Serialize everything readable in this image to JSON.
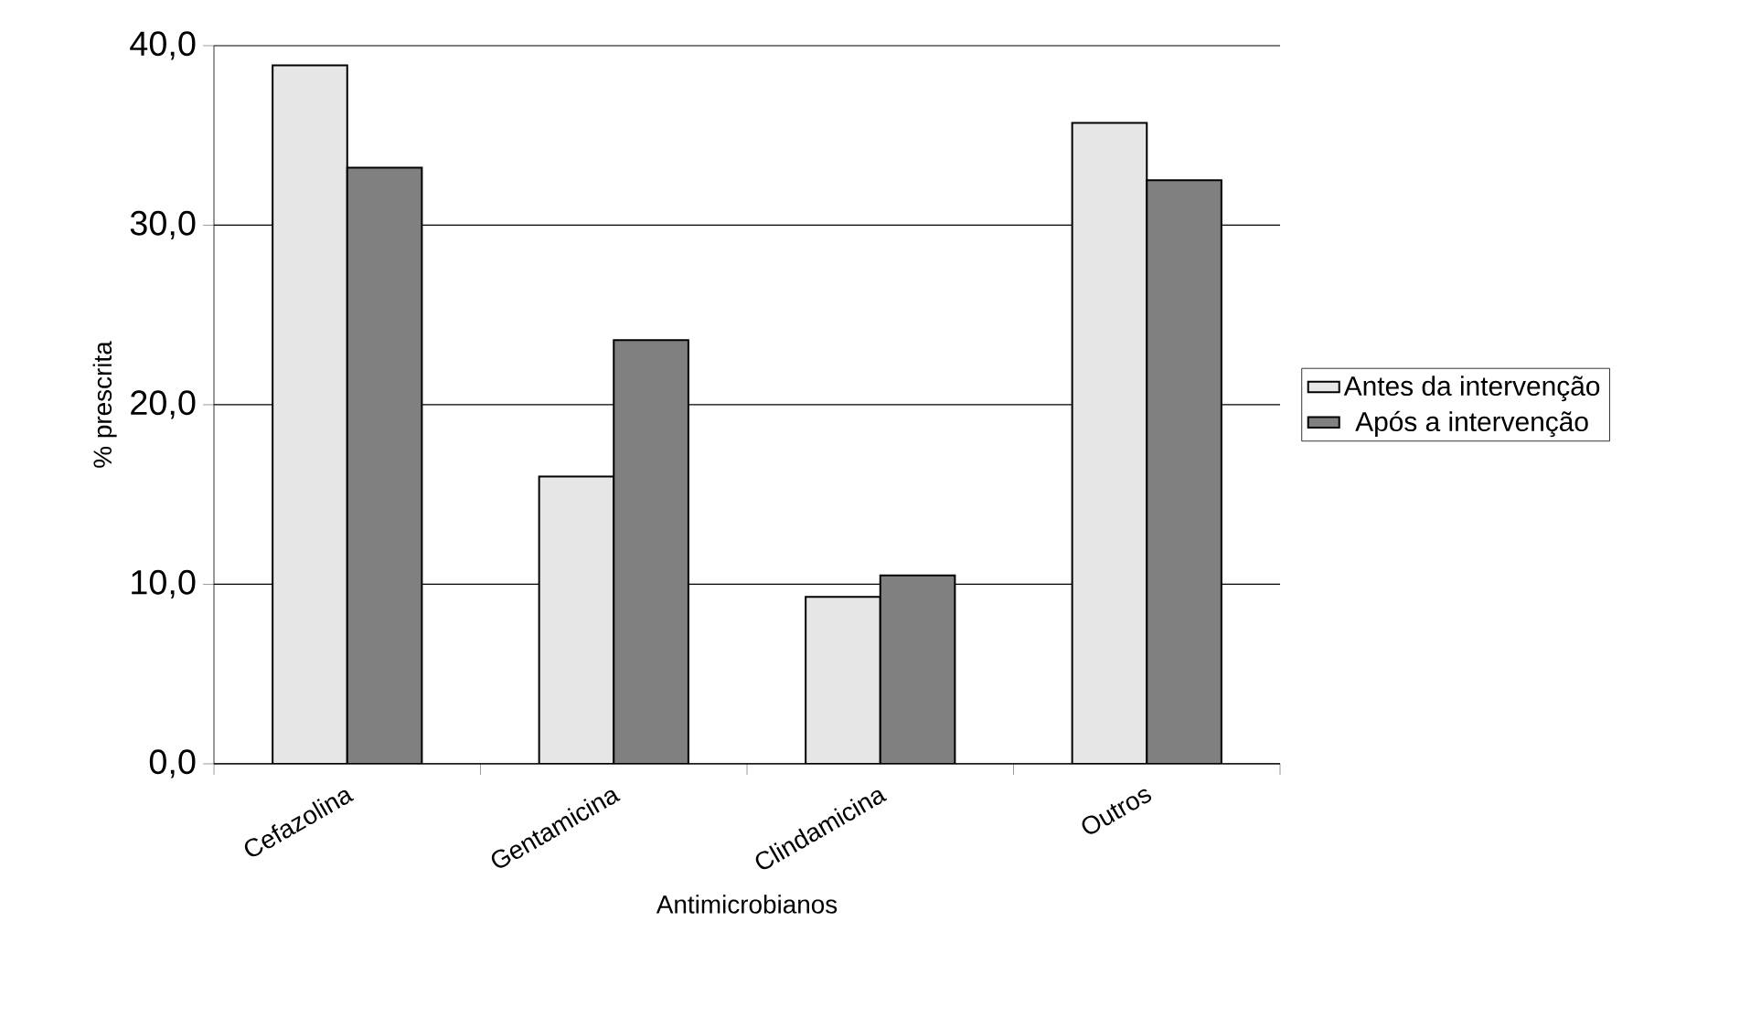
{
  "chart_data": {
    "type": "bar",
    "xlabel": "Antimicrobianos",
    "ylabel": "% prescrita",
    "categories": [
      "Cefazolina",
      "Gentamicina",
      "Clindamicina",
      "Outros"
    ],
    "series": [
      {
        "name": "Antes da intervenção",
        "color": "#e6e6e6",
        "values": [
          38.9,
          16.0,
          9.3,
          35.7
        ]
      },
      {
        "name": "Após a intervenção",
        "color": "#808080",
        "values": [
          33.2,
          23.6,
          10.5,
          32.5
        ]
      }
    ],
    "ylim": [
      0,
      40
    ],
    "yticks": [
      {
        "value": 0,
        "label": "0,0"
      },
      {
        "value": 10,
        "label": "10,0"
      },
      {
        "value": 20,
        "label": "20,0"
      },
      {
        "value": 30,
        "label": "30,0"
      },
      {
        "value": 40,
        "label": "40,0"
      }
    ],
    "grid": "y",
    "legend": "right"
  }
}
